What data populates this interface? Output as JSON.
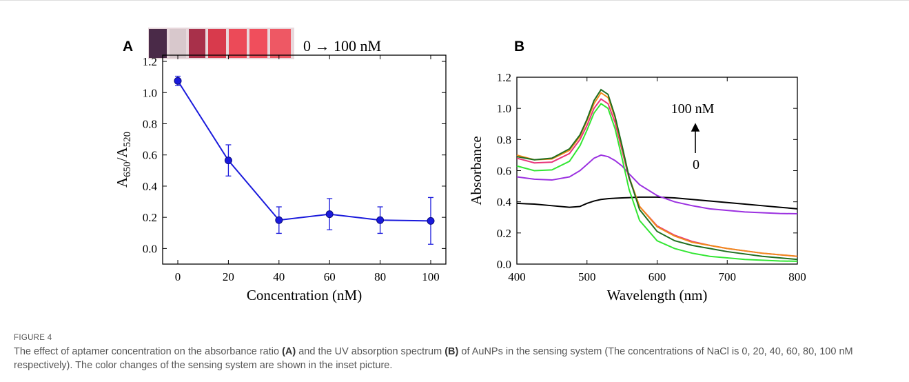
{
  "figure": {
    "label": "FIGURE 4",
    "caption": [
      "The effect of aptamer concentration on the absorbance ratio ",
      "(A)",
      " and the UV absorption spectrum ",
      "(B)",
      " of AuNPs in the sensing system (The concentrations of NaCl is 0, 20, 40, 60, 80, 100 nM respectively). The color changes of the sensing system are shown in the inset picture."
    ]
  },
  "chart_data": [
    {
      "type": "line",
      "panel_label": "A",
      "inset_label": "0 → 100 nM",
      "xlabel": "Concentration (nM)",
      "ylabel": [
        "A",
        "650",
        "/A",
        "520"
      ],
      "x": [
        0,
        20,
        40,
        60,
        80,
        100
      ],
      "values": [
        1.075,
        0.565,
        0.182,
        0.22,
        0.182,
        0.177
      ],
      "errors": [
        0.03,
        0.1,
        0.085,
        0.1,
        0.085,
        0.15
      ],
      "color": "#1a1adc",
      "xlim": [
        -6,
        106
      ],
      "ylim": [
        -0.1,
        1.24
      ],
      "xticks": [
        0,
        20,
        40,
        60,
        80,
        100
      ],
      "yticks": [
        {
          "value": 0,
          "label": "0.0"
        },
        {
          "value": 0.2,
          "label": "0.2"
        },
        {
          "value": 0.4,
          "label": "0.4"
        },
        {
          "value": 0.6,
          "label": "0.6"
        },
        {
          "value": 0.8,
          "label": "0.8"
        },
        {
          "value": 1.0,
          "label": "1.0"
        },
        {
          "value": 1.2,
          "label": "1.2"
        }
      ]
    },
    {
      "type": "line",
      "panel_label": "B",
      "annotations": [
        "100 nM",
        "0"
      ],
      "xlabel": "Wavelength (nm)",
      "ylabel": [
        "Absorbance"
      ],
      "x": [
        400,
        425,
        450,
        475,
        490,
        500,
        510,
        520,
        530,
        540,
        550,
        560,
        575,
        600,
        625,
        650,
        675,
        700,
        725,
        750,
        775,
        800
      ],
      "series": [
        {
          "color": "#000000",
          "values": [
            0.39,
            0.385,
            0.375,
            0.365,
            0.37,
            0.39,
            0.405,
            0.415,
            0.42,
            0.423,
            0.425,
            0.427,
            0.43,
            0.43,
            0.425,
            0.415,
            0.405,
            0.395,
            0.385,
            0.375,
            0.365,
            0.355
          ]
        },
        {
          "color": "#9b30e0",
          "values": [
            0.56,
            0.545,
            0.54,
            0.56,
            0.6,
            0.64,
            0.68,
            0.7,
            0.69,
            0.665,
            0.63,
            0.58,
            0.51,
            0.44,
            0.4,
            0.375,
            0.355,
            0.345,
            0.335,
            0.33,
            0.325,
            0.323
          ]
        },
        {
          "color": "#33e633",
          "values": [
            0.63,
            0.6,
            0.605,
            0.66,
            0.76,
            0.86,
            0.97,
            1.03,
            1.0,
            0.87,
            0.68,
            0.48,
            0.28,
            0.15,
            0.1,
            0.07,
            0.05,
            0.04,
            0.03,
            0.025,
            0.02,
            0.018
          ]
        },
        {
          "color": "#e8357a",
          "values": [
            0.68,
            0.65,
            0.655,
            0.71,
            0.8,
            0.89,
            1.0,
            1.06,
            1.03,
            0.91,
            0.73,
            0.55,
            0.37,
            0.245,
            0.185,
            0.145,
            0.12,
            0.1,
            0.085,
            0.07,
            0.06,
            0.05
          ]
        },
        {
          "color": "#f08a1c",
          "values": [
            0.7,
            0.67,
            0.675,
            0.73,
            0.82,
            0.92,
            1.03,
            1.1,
            1.07,
            0.94,
            0.75,
            0.56,
            0.37,
            0.24,
            0.18,
            0.14,
            0.12,
            0.1,
            0.085,
            0.07,
            0.06,
            0.05
          ]
        },
        {
          "color": "#1f6e1f",
          "values": [
            0.69,
            0.67,
            0.68,
            0.74,
            0.83,
            0.93,
            1.05,
            1.12,
            1.09,
            0.95,
            0.76,
            0.56,
            0.35,
            0.21,
            0.15,
            0.12,
            0.1,
            0.08,
            0.065,
            0.05,
            0.04,
            0.03
          ]
        }
      ],
      "xlim": [
        400,
        800
      ],
      "ylim": [
        0,
        1.2
      ],
      "xticks": [
        400,
        500,
        600,
        700,
        800
      ],
      "yticks": [
        {
          "value": 0,
          "label": "0.0"
        },
        {
          "value": 0.2,
          "label": "0.2"
        },
        {
          "value": 0.4,
          "label": "0.4"
        },
        {
          "value": 0.6,
          "label": "0.6"
        },
        {
          "value": 0.8,
          "label": "0.8"
        },
        {
          "value": 1.0,
          "label": "1.0"
        },
        {
          "value": 1.2,
          "label": "1.2"
        }
      ]
    }
  ]
}
